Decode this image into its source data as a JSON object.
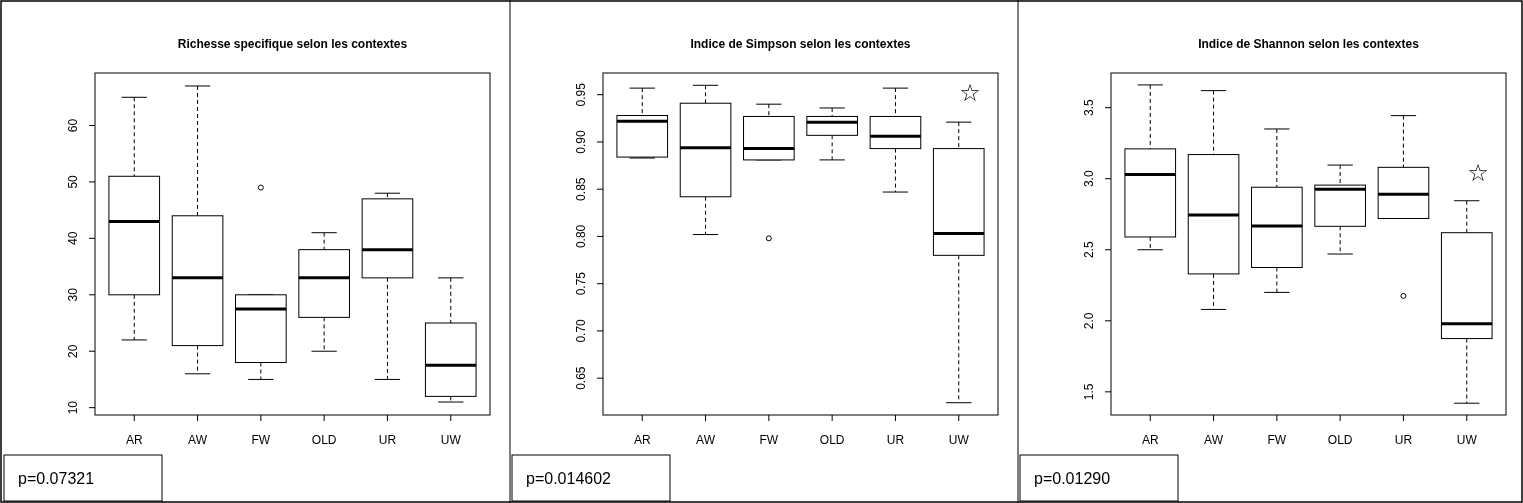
{
  "chart_data": [
    {
      "type": "box",
      "title": "Richesse specifique selon les contextes",
      "categories": [
        "AR",
        "AW",
        "FW",
        "OLD",
        "UR",
        "UW"
      ],
      "ylim": [
        8.7,
        69.3
      ],
      "yticks": [
        10,
        20,
        30,
        40,
        50,
        60
      ],
      "boxes": [
        {
          "low": 22,
          "q1": 30,
          "median": 43,
          "q3": 51,
          "high": 65
        },
        {
          "low": 16,
          "q1": 21,
          "median": 33,
          "q3": 44,
          "high": 67
        },
        {
          "low": 15,
          "q1": 18,
          "median": 27.5,
          "q3": 30,
          "high": 30,
          "outliers": [
            49
          ]
        },
        {
          "low": 20,
          "q1": 26,
          "median": 33,
          "q3": 38,
          "high": 41
        },
        {
          "low": 15,
          "q1": 33,
          "median": 38,
          "q3": 47,
          "high": 48
        },
        {
          "low": 11,
          "q1": 12,
          "median": 17.5,
          "q3": 25,
          "high": 33
        }
      ],
      "annotations": [
        "p=0.07321"
      ]
    },
    {
      "type": "box",
      "title": "Indice de Simpson selon les contextes",
      "categories": [
        "AR",
        "AW",
        "FW",
        "OLD",
        "UR",
        "UW"
      ],
      "ylim": [
        0.611,
        0.973
      ],
      "yticks": [
        {
          "value": 0.65,
          "label": "0.65"
        },
        {
          "value": 0.7,
          "label": "0.70"
        },
        {
          "value": 0.75,
          "label": "0.75"
        },
        {
          "value": 0.8,
          "label": "0.80"
        },
        {
          "value": 0.85,
          "label": "0.85"
        },
        {
          "value": 0.9,
          "label": "0.90"
        },
        {
          "value": 0.95,
          "label": "0.95"
        }
      ],
      "boxes": [
        {
          "low": 0.883,
          "q1": 0.884,
          "median": 0.922,
          "q3": 0.928,
          "high": 0.957
        },
        {
          "low": 0.802,
          "q1": 0.842,
          "median": 0.894,
          "q3": 0.941,
          "high": 0.96
        },
        {
          "low": 0.881,
          "q1": 0.881,
          "median": 0.893,
          "q3": 0.927,
          "high": 0.94,
          "outliers": [
            0.798
          ]
        },
        {
          "low": 0.881,
          "q1": 0.907,
          "median": 0.921,
          "q3": 0.927,
          "high": 0.936
        },
        {
          "low": 0.847,
          "q1": 0.893,
          "median": 0.906,
          "q3": 0.927,
          "high": 0.957
        },
        {
          "low": 0.624,
          "q1": 0.78,
          "median": 0.803,
          "q3": 0.893,
          "high": 0.921
        }
      ],
      "annotations": [
        "☆",
        "p=0.014602"
      ]
    },
    {
      "type": "box",
      "title": "Indice de Shannon selon les contextes",
      "categories": [
        "AR",
        "AW",
        "FW",
        "OLD",
        "UR",
        "UW"
      ],
      "ylim": [
        1.337,
        3.744
      ],
      "yticks": [
        {
          "value": 1.5,
          "label": "1.5"
        },
        {
          "value": 2,
          "label": "2.0"
        },
        {
          "value": 2.5,
          "label": "2.5"
        },
        {
          "value": 3,
          "label": "3.0"
        },
        {
          "value": 3.5,
          "label": "3.5"
        }
      ],
      "boxes": [
        {
          "low": 2.5,
          "q1": 2.59,
          "median": 3.03,
          "q3": 3.21,
          "high": 3.66
        },
        {
          "low": 2.08,
          "q1": 2.33,
          "median": 2.745,
          "q3": 3.17,
          "high": 3.62
        },
        {
          "low": 2.2,
          "q1": 2.375,
          "median": 2.667,
          "q3": 2.94,
          "high": 3.35
        },
        {
          "low": 2.47,
          "q1": 2.665,
          "median": 2.925,
          "q3": 2.955,
          "high": 3.096
        },
        {
          "low": 2.72,
          "q1": 2.72,
          "median": 2.89,
          "q3": 3.08,
          "high": 3.444,
          "outliers": [
            2.175
          ]
        },
        {
          "low": 1.42,
          "q1": 1.875,
          "median": 1.98,
          "q3": 2.62,
          "high": 2.845
        }
      ],
      "annotations": [
        "☆",
        "p=0.01290"
      ]
    }
  ]
}
